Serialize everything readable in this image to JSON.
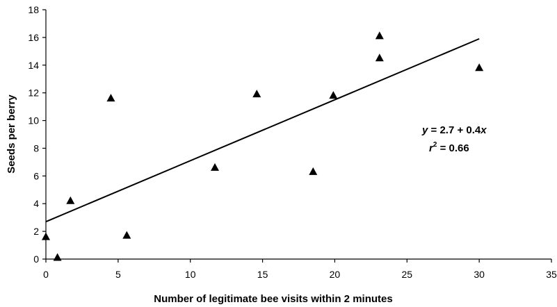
{
  "chart_data": {
    "type": "scatter",
    "title": "",
    "xlabel": "Number of legitimate bee visits within 2 minutes",
    "ylabel": "Seeds per berry",
    "xlim": [
      0,
      35
    ],
    "ylim": [
      0,
      18
    ],
    "x_ticks": [
      "0",
      "5",
      "10",
      "15",
      "20",
      "25",
      "30",
      "35"
    ],
    "y_ticks": [
      "0",
      "2",
      "4",
      "6",
      "8",
      "10",
      "12",
      "14",
      "16",
      "18"
    ],
    "grid": false,
    "legend": "none",
    "marker": "triangle",
    "color": "#000000",
    "points": [
      {
        "x": 0,
        "y": 1.6
      },
      {
        "x": 0.8,
        "y": 0.1
      },
      {
        "x": 1.7,
        "y": 4.2
      },
      {
        "x": 4.5,
        "y": 11.6
      },
      {
        "x": 5.6,
        "y": 1.7
      },
      {
        "x": 11.7,
        "y": 6.6
      },
      {
        "x": 14.6,
        "y": 11.9
      },
      {
        "x": 18.5,
        "y": 6.3
      },
      {
        "x": 19.9,
        "y": 11.8
      },
      {
        "x": 23.1,
        "y": 16.1
      },
      {
        "x": 23.1,
        "y": 14.5
      },
      {
        "x": 30,
        "y": 13.8
      }
    ],
    "trendline": {
      "x": [
        0,
        30
      ],
      "y": [
        2.7,
        15.9
      ]
    },
    "annotation": {
      "eq_var_y": "y",
      "eq_body": " = 2.7 + 0.4",
      "eq_var_x": "x",
      "r2_var": "r",
      "r2_sup": "2",
      "r2_body": " = 0.66"
    }
  }
}
